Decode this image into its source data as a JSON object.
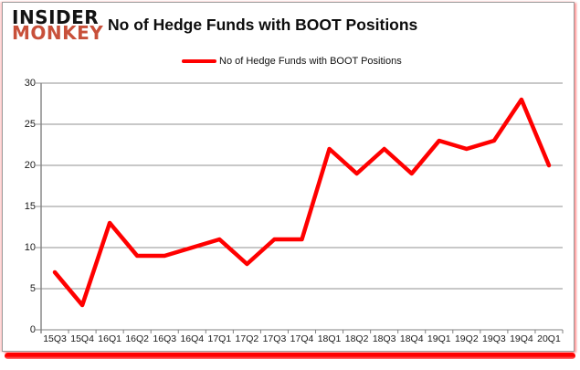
{
  "header": {
    "logo_line1": "INSIDER",
    "logo_line2": "MONKEY",
    "title": "No of Hedge Funds with BOOT Positions"
  },
  "legend": {
    "label": "No of Hedge Funds with BOOT Positions"
  },
  "colors": {
    "line": "#ff0000",
    "logo_accent": "#c8503a",
    "grid": "#919191",
    "axis": "#808080",
    "accent_bar": "#ff0000"
  },
  "chart_data": {
    "type": "line",
    "title": "No of Hedge Funds with BOOT Positions",
    "categories": [
      "15Q3",
      "15Q4",
      "16Q1",
      "16Q2",
      "16Q3",
      "16Q4",
      "17Q1",
      "17Q2",
      "17Q3",
      "17Q4",
      "18Q1",
      "18Q2",
      "18Q3",
      "18Q4",
      "19Q1",
      "19Q2",
      "19Q3",
      "19Q4",
      "20Q1"
    ],
    "values": [
      7,
      3,
      13,
      9,
      9,
      10,
      11,
      8,
      11,
      11,
      22,
      19,
      22,
      19,
      23,
      22,
      23,
      28,
      20
    ],
    "xlabel": "",
    "ylabel": "",
    "ylim": [
      0,
      30
    ],
    "yticks": [
      0,
      5,
      10,
      15,
      20,
      25,
      30
    ],
    "grid": "horizontal",
    "legend_position": "top"
  }
}
